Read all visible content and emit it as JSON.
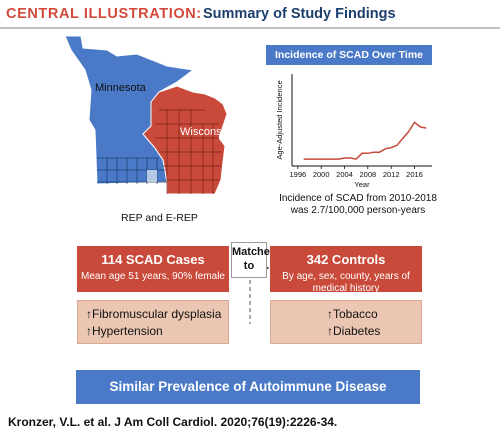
{
  "header": {
    "label": "CENTRAL ILLUSTRATION:",
    "subtitle": "Summary of Study Findings"
  },
  "map": {
    "state_a": "Minnesota",
    "state_b": "Wisconsin",
    "caption": "REP and E-REP",
    "colors": {
      "minnesota": "#4a79c8",
      "wisconsin": "#c94a3b"
    }
  },
  "chart_data": {
    "type": "line",
    "title": "Incidence of SCAD Over Time",
    "xlabel": "Year",
    "ylabel": "Age-Adjusted Incidence",
    "x_ticks": [
      "1996",
      "2000",
      "2004",
      "2008",
      "2012",
      "2016"
    ],
    "xlim": [
      1995,
      2019
    ],
    "ylim": [
      0,
      4
    ],
    "series": [
      {
        "x": [
          1997,
          1999,
          2001,
          2003,
          2004,
          2005,
          2006,
          2007,
          2008,
          2009,
          2010,
          2011,
          2012,
          2013,
          2014,
          2015,
          2016,
          2017,
          2018
        ],
        "values": [
          0.3,
          0.3,
          0.3,
          0.3,
          0.35,
          0.35,
          0.3,
          0.55,
          0.55,
          0.6,
          0.6,
          0.75,
          0.8,
          0.9,
          1.2,
          1.5,
          1.9,
          1.7,
          1.65
        ],
        "color": "#c94a3b"
      }
    ],
    "note": "Incidence of SCAD from 2010-2018 was 2.7/100,000 person-years"
  },
  "cases": {
    "title": "114 SCAD Cases",
    "subtitle": "Mean age 51 years, 90% female",
    "findings": [
      "↑Fibromuscular dysplasia",
      "↑Hypertension"
    ]
  },
  "matched": {
    "line1": "Matched",
    "line2": "to"
  },
  "controls": {
    "title": "342 Controls",
    "subtitle": "By age, sex, county, years of medical history",
    "findings": [
      "↑Tobacco",
      "↑Diabetes"
    ]
  },
  "conclusion": "Similar Prevalence of Autoimmune Disease",
  "citation": "Kronzer, V.L. et al. J Am Coll Cardiol. 2020;76(19):2226-34."
}
